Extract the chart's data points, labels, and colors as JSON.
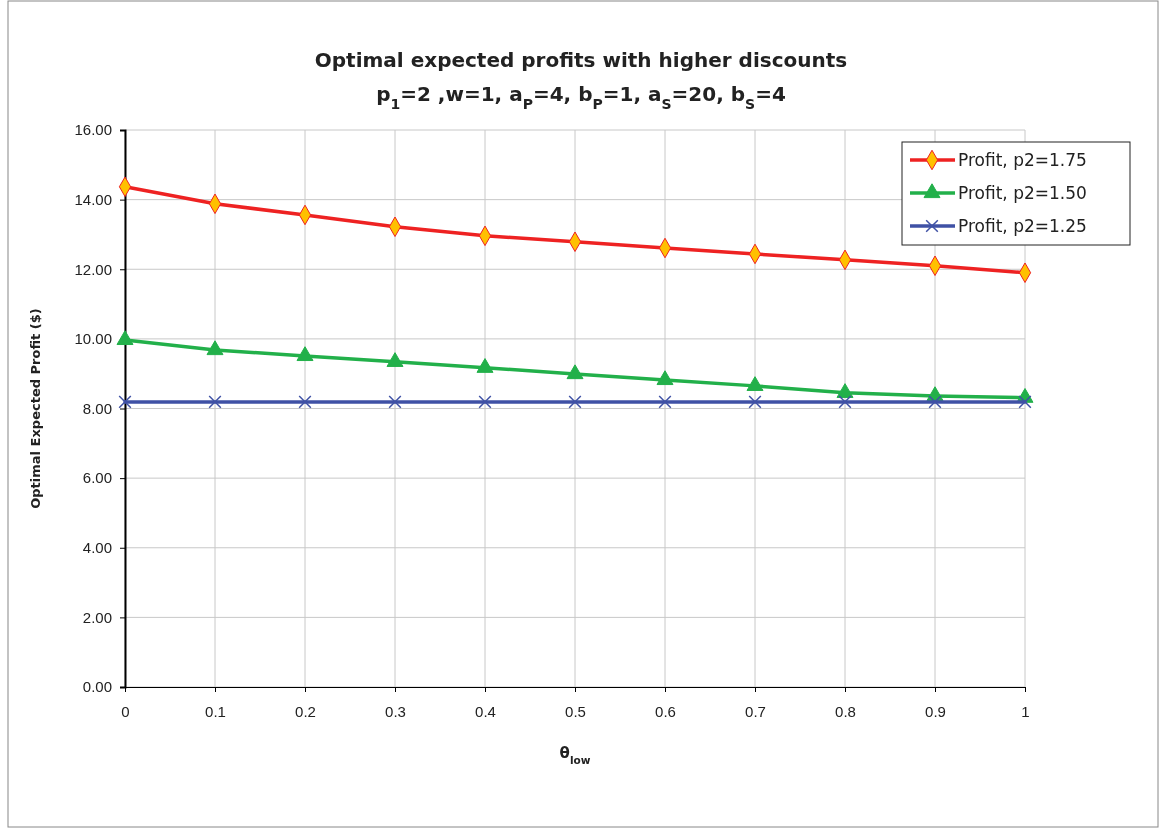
{
  "chart_data": {
    "type": "line",
    "title": "Optimal expected profits with higher discounts",
    "subtitle": "p$_{1}$=2 ,w=1, a$_{P}$=4, b$_{P}$=1, a$_{S}$=20, b$_{S}$=4",
    "xlabel": "θ$_{low}$",
    "ylabel": "Optimal Expected Profit ($)",
    "x": [
      0,
      0.1,
      0.2,
      0.3,
      0.4,
      0.5,
      0.6,
      0.7,
      0.8,
      0.9,
      1
    ],
    "series": [
      {
        "name": "Profit, p2=1.75",
        "color": "#ee2222",
        "marker": "diamond",
        "values": [
          14.37,
          13.88,
          13.56,
          13.22,
          12.96,
          12.79,
          12.61,
          12.44,
          12.27,
          12.1,
          11.9
        ]
      },
      {
        "name": "Profit, p2=1.50",
        "color": "#22b04a",
        "marker": "triangle",
        "values": [
          9.97,
          9.68,
          9.51,
          9.34,
          9.17,
          8.99,
          8.82,
          8.65,
          8.45,
          8.36,
          8.31
        ]
      },
      {
        "name": "Profit, p2=1.25",
        "color": "#3f51a5",
        "marker": "cross",
        "values": [
          8.19,
          8.19,
          8.19,
          8.19,
          8.19,
          8.19,
          8.19,
          8.19,
          8.19,
          8.19,
          8.19
        ]
      }
    ],
    "xlim": [
      0,
      1
    ],
    "xticks": [
      0,
      0.1,
      0.2,
      0.3,
      0.4,
      0.5,
      0.6,
      0.7,
      0.8,
      0.9,
      1
    ],
    "ylim": [
      0,
      16
    ],
    "yticks": [
      {
        "value": 0,
        "label": "0.00"
      },
      {
        "value": 2,
        "label": "2.00"
      },
      {
        "value": 4,
        "label": "4.00"
      },
      {
        "value": 6,
        "label": "6.00"
      },
      {
        "value": 8,
        "label": "8.00"
      },
      {
        "value": 10,
        "label": "10.00"
      },
      {
        "value": 12,
        "label": "12.00"
      },
      {
        "value": 14,
        "label": "14.00"
      },
      {
        "value": 16,
        "label": "16.00"
      }
    ],
    "grid": true,
    "legend": "top right",
    "line_style": "solid"
  }
}
